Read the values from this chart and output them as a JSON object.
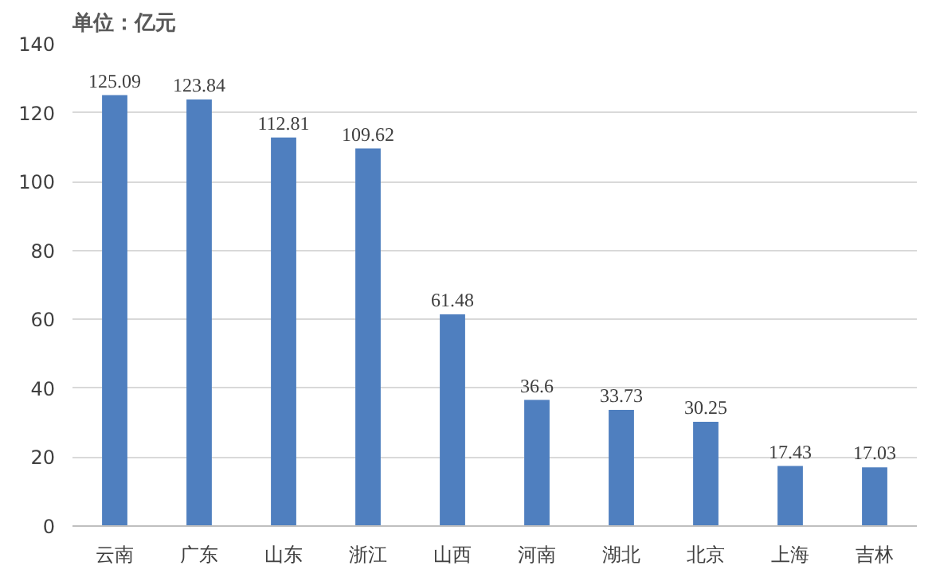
{
  "chart_data": {
    "type": "bar",
    "title": "单位：亿元",
    "categories": [
      "云南",
      "广东",
      "山东",
      "浙江",
      "山西",
      "河南",
      "湖北",
      "北京",
      "上海",
      "吉林"
    ],
    "values": [
      125.09,
      123.84,
      112.81,
      109.62,
      61.48,
      36.6,
      33.73,
      30.25,
      17.43,
      17.03
    ],
    "color": "#4f7fbf",
    "ylim": [
      0,
      140
    ],
    "yticks": [
      0,
      20,
      40,
      60,
      80,
      100,
      120,
      140
    ],
    "grid": "y",
    "data_labels": true
  }
}
